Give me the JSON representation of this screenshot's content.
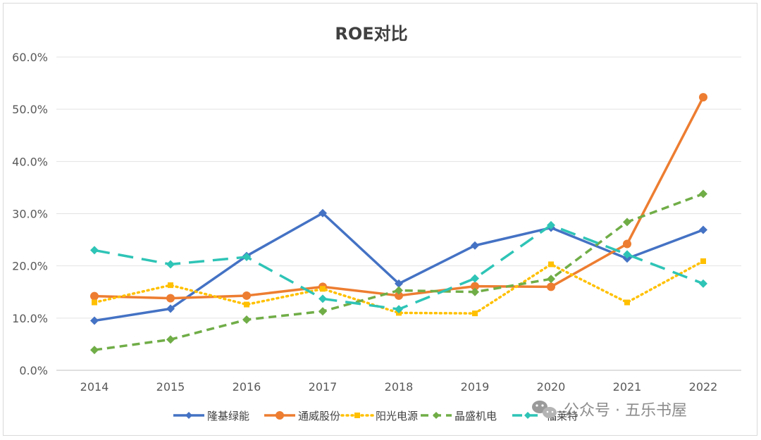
{
  "chart_data": {
    "type": "line",
    "title": "ROE对比",
    "categories": [
      "2014",
      "2015",
      "2016",
      "2017",
      "2018",
      "2019",
      "2020",
      "2021",
      "2022"
    ],
    "ylim": [
      0,
      60
    ],
    "yticks": [
      "0.0%",
      "10.0%",
      "20.0%",
      "30.0%",
      "40.0%",
      "50.0%",
      "60.0%"
    ],
    "grid": true,
    "legend_position": "bottom",
    "series": [
      {
        "name": "隆基绿能",
        "color": "#4472c4",
        "style": "solid",
        "marker": "diamond",
        "values": [
          9.5,
          11.8,
          21.9,
          30.1,
          16.6,
          23.9,
          27.3,
          21.4,
          26.9
        ]
      },
      {
        "name": "通威股份",
        "color": "#ed7d31",
        "style": "solid",
        "marker": "circle",
        "values": [
          14.2,
          13.8,
          14.3,
          16.0,
          14.3,
          16.1,
          16.0,
          24.2,
          52.3
        ]
      },
      {
        "name": "阳光电源",
        "color": "#ffc000",
        "style": "dotted",
        "marker": "square",
        "values": [
          13.0,
          16.3,
          12.6,
          15.6,
          11.0,
          10.9,
          20.3,
          13.0,
          20.9
        ]
      },
      {
        "name": "晶盛机电",
        "color": "#70ad47",
        "style": "dashed",
        "marker": "diamond",
        "values": [
          3.9,
          5.9,
          9.7,
          11.3,
          15.3,
          15.0,
          17.5,
          28.4,
          33.8
        ]
      },
      {
        "name": "福莱特",
        "color": "#2ec4b6",
        "style": "longdash",
        "marker": "diamond",
        "values": [
          23.0,
          20.3,
          21.7,
          13.7,
          11.7,
          17.6,
          27.8,
          22.2,
          16.6
        ]
      }
    ]
  },
  "watermark": {
    "text": "公众号 · 五乐书屋",
    "icon": "wechat-icon"
  }
}
